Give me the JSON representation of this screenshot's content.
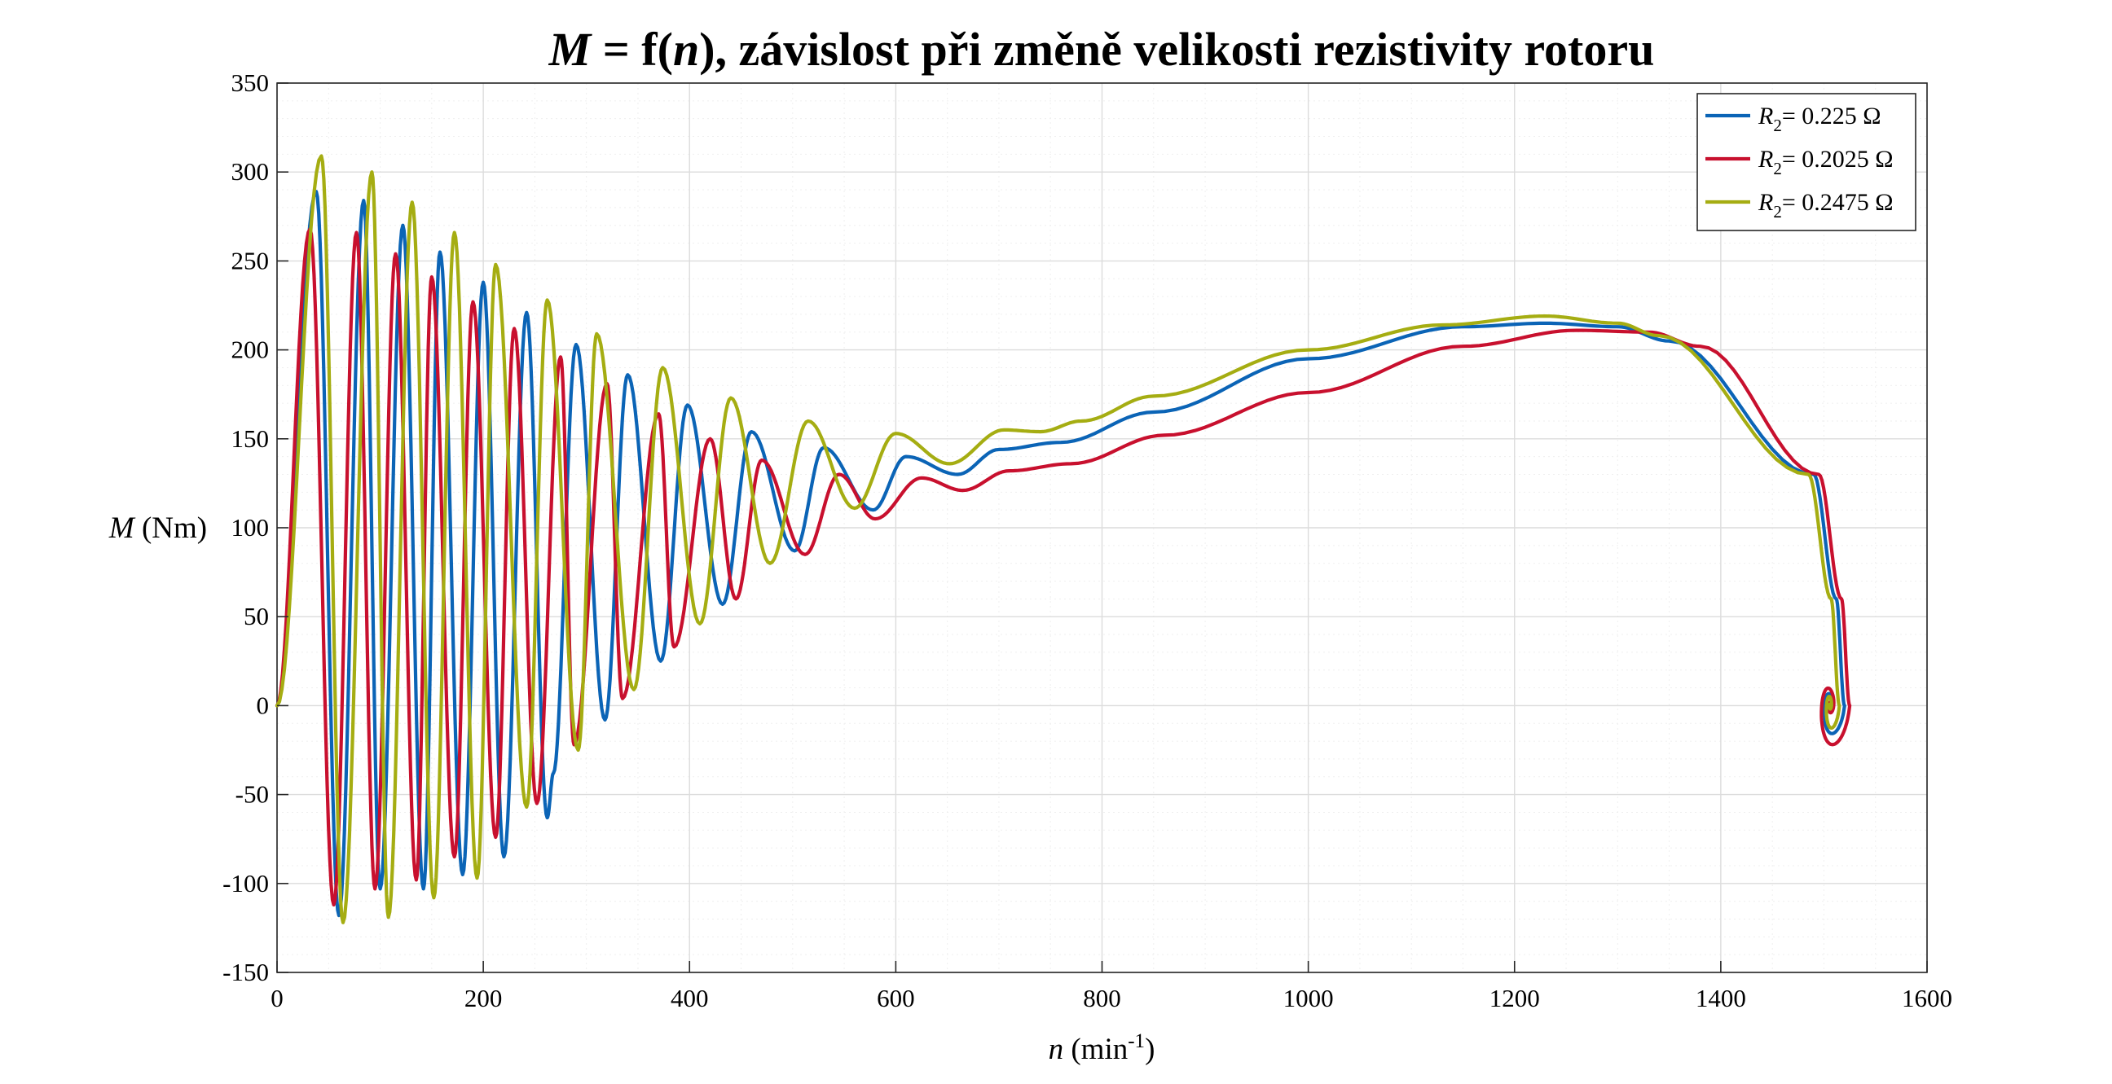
{
  "chart_data": {
    "type": "line",
    "title_parts": [
      "M",
      " = f(",
      "n",
      "), závislost při změně velikosti rezistivity rotoru"
    ],
    "xlabel_parts": [
      "n",
      " (min",
      "-1",
      ")"
    ],
    "ylabel_parts": [
      "M",
      " (Nm)"
    ],
    "xlim": [
      0,
      1600
    ],
    "ylim": [
      -150,
      350
    ],
    "xticks": [
      0,
      200,
      400,
      600,
      800,
      1000,
      1200,
      1400,
      1600
    ],
    "yticks": [
      -150,
      -100,
      -50,
      0,
      50,
      100,
      150,
      200,
      250,
      300,
      350
    ],
    "grid": true,
    "minor_grid": true,
    "legend_position": "top-right",
    "series": [
      {
        "name": "R2= 0.225 Ω",
        "name_parts": [
          "R",
          "2",
          "= 0.225 Ω"
        ],
        "color": "#0b64b6",
        "model": {
          "n_sync": 1500,
          "n_end_osc": 510,
          "n_max": 1520,
          "spiral_phase": 5.1,
          "spiral_amp": 22,
          "k_spiral": 0.9,
          "breakdown": 215,
          "peaks": [
            [
              38,
              289
            ],
            [
              84,
              284
            ],
            [
              122,
              270
            ],
            [
              158,
              255
            ],
            [
              200,
              238
            ],
            [
              242,
              221
            ],
            [
              290,
              203
            ],
            [
              340,
              186
            ],
            [
              398,
              169
            ],
            [
              460,
              154
            ],
            [
              530,
              145
            ],
            [
              610,
              140
            ]
          ],
          "troughs": [
            [
              60,
              -118
            ],
            [
              100,
              -103
            ],
            [
              142,
              -103
            ],
            [
              180,
              -95
            ],
            [
              220,
              -85
            ],
            [
              262,
              -63
            ],
            [
              268,
              -38
            ],
            [
              318,
              -8
            ],
            [
              372,
              25
            ],
            [
              432,
              57
            ],
            [
              502,
              87
            ],
            [
              578,
              110
            ],
            [
              660,
              130
            ]
          ],
          "plateau": [
            [
              700,
              144
            ],
            [
              760,
              148
            ],
            [
              850,
              165
            ],
            [
              1000,
              195
            ],
            [
              1150,
              213
            ],
            [
              1230,
              215
            ],
            [
              1300,
              213
            ],
            [
              1350,
              205
            ]
          ]
        }
      },
      {
        "name": "R2= 0.2025 Ω",
        "name_parts": [
          "R",
          "2",
          "= 0.2025 Ω"
        ],
        "color": "#c8102e",
        "model": {
          "n_sync": 1500,
          "n_end_osc": 520,
          "n_max": 1525,
          "spiral_phase": 5.0,
          "spiral_amp": 30,
          "k_spiral": 0.85,
          "breakdown": 211,
          "peaks": [
            [
              32,
              268
            ],
            [
              77,
              266
            ],
            [
              115,
              254
            ],
            [
              150,
              241
            ],
            [
              190,
              227
            ],
            [
              230,
              212
            ],
            [
              275,
              196
            ],
            [
              320,
              181
            ],
            [
              370,
              164
            ],
            [
              420,
              150
            ],
            [
              470,
              138
            ],
            [
              545,
              130
            ],
            [
              625,
              128
            ]
          ],
          "troughs": [
            [
              55,
              -112
            ],
            [
              95,
              -103
            ],
            [
              135,
              -98
            ],
            [
              172,
              -85
            ],
            [
              212,
              -74
            ],
            [
              252,
              -55
            ],
            [
              288,
              -22
            ],
            [
              335,
              4
            ],
            [
              385,
              33
            ],
            [
              445,
              60
            ],
            [
              512,
              85
            ],
            [
              580,
              105
            ],
            [
              665,
              121
            ]
          ],
          "plateau": [
            [
              710,
              132
            ],
            [
              770,
              136
            ],
            [
              860,
              152
            ],
            [
              1000,
              176
            ],
            [
              1150,
              202
            ],
            [
              1260,
              211
            ],
            [
              1330,
              210
            ],
            [
              1380,
              202
            ]
          ]
        }
      },
      {
        "name": "R2= 0.2475 Ω",
        "name_parts": [
          "R",
          "2",
          "= 0.2475 Ω"
        ],
        "color": "#a5ad12",
        "model": {
          "n_sync": 1500,
          "n_end_osc": 500,
          "n_max": 1515,
          "spiral_phase": 5.2,
          "spiral_amp": 18,
          "k_spiral": 0.95,
          "breakdown": 219,
          "peaks": [
            [
              43,
              309
            ],
            [
              92,
              300
            ],
            [
              131,
              283
            ],
            [
              172,
              266
            ],
            [
              212,
              248
            ],
            [
              262,
              228
            ],
            [
              310,
              209
            ],
            [
              374,
              190
            ],
            [
              440,
              173
            ],
            [
              515,
              160
            ],
            [
              600,
              153
            ],
            [
              705,
              155
            ]
          ],
          "troughs": [
            [
              64,
              -122
            ],
            [
              108,
              -119
            ],
            [
              152,
              -108
            ],
            [
              194,
              -97
            ],
            [
              242,
              -57
            ],
            [
              292,
              -25
            ],
            [
              346,
              9
            ],
            [
              410,
              46
            ],
            [
              478,
              80
            ],
            [
              560,
              111
            ],
            [
              652,
              136
            ],
            [
              740,
              154
            ]
          ],
          "plateau": [
            [
              780,
              160
            ],
            [
              850,
              174
            ],
            [
              1000,
              200
            ],
            [
              1130,
              214
            ],
            [
              1230,
              219
            ],
            [
              1300,
              215
            ],
            [
              1340,
              208
            ]
          ]
        }
      }
    ]
  }
}
